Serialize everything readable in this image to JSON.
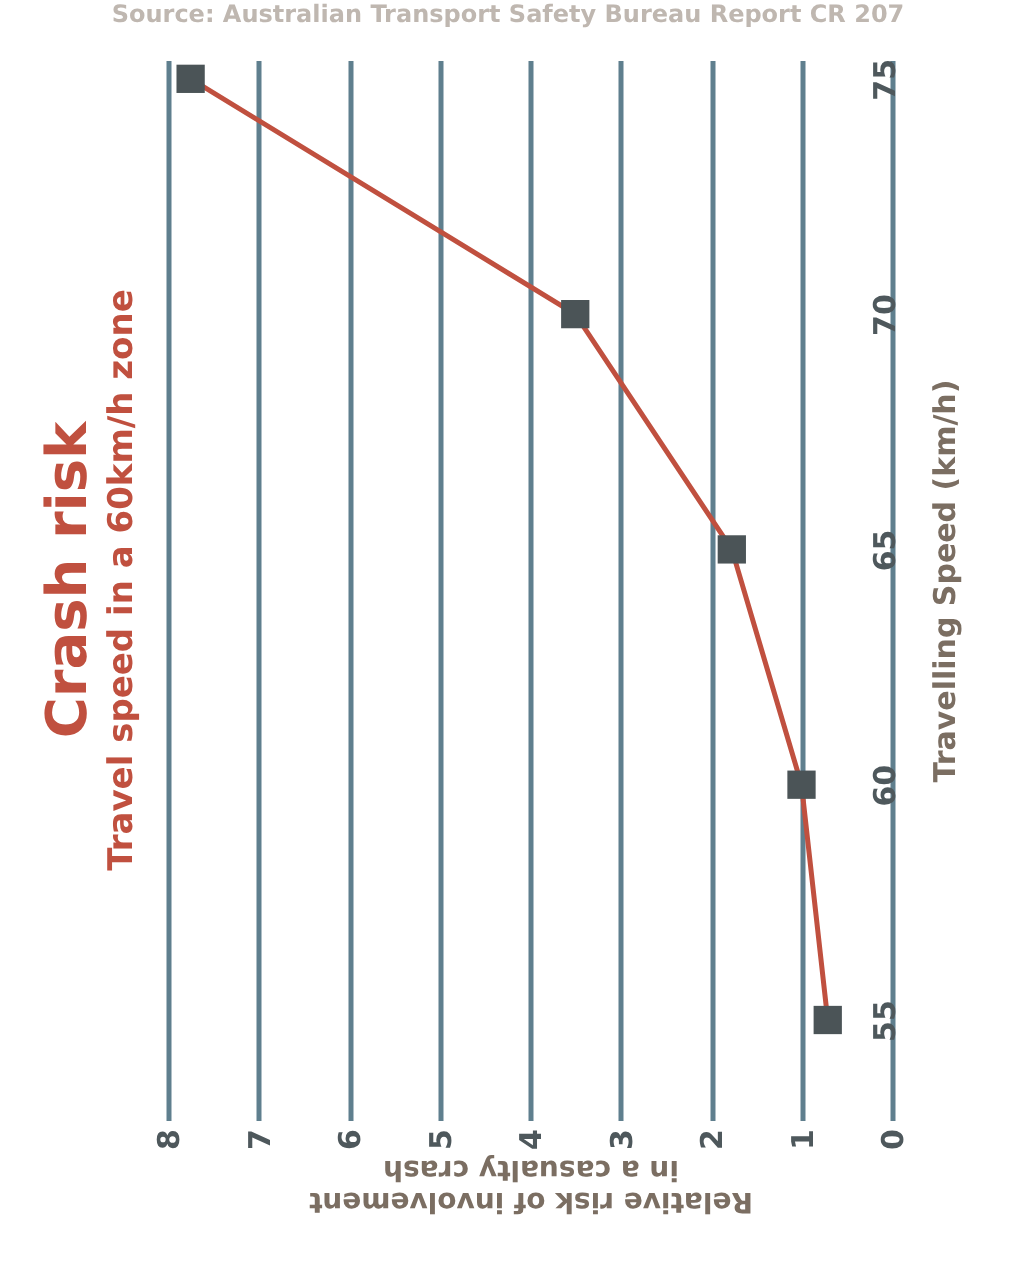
{
  "chart_data": {
    "type": "line",
    "title": "Crash risk",
    "subtitle": "Travel speed in a 60km/h zone",
    "xlabel": "Relative risk of involvement in a casualty crash",
    "ylabel": "Travelling Speed (km/h)",
    "annotations": [
      "Source: Australian Transport Safety Bureau Report CR 207"
    ],
    "x": [
      0.71,
      1.0,
      1.77,
      3.5,
      7.75
    ],
    "series": [
      {
        "color": "#c0503f",
        "values": [
          55,
          60,
          65,
          70,
          75
        ]
      }
    ],
    "xlim": [
      8,
      0
    ],
    "xticks": [
      8,
      7,
      6,
      5,
      4,
      3,
      2,
      1,
      0
    ],
    "ylim": [
      53.3,
      75.4
    ],
    "yticks": [
      55,
      60,
      65,
      70,
      75
    ],
    "grid": "x",
    "marker": "square",
    "line_style": "solid"
  }
}
